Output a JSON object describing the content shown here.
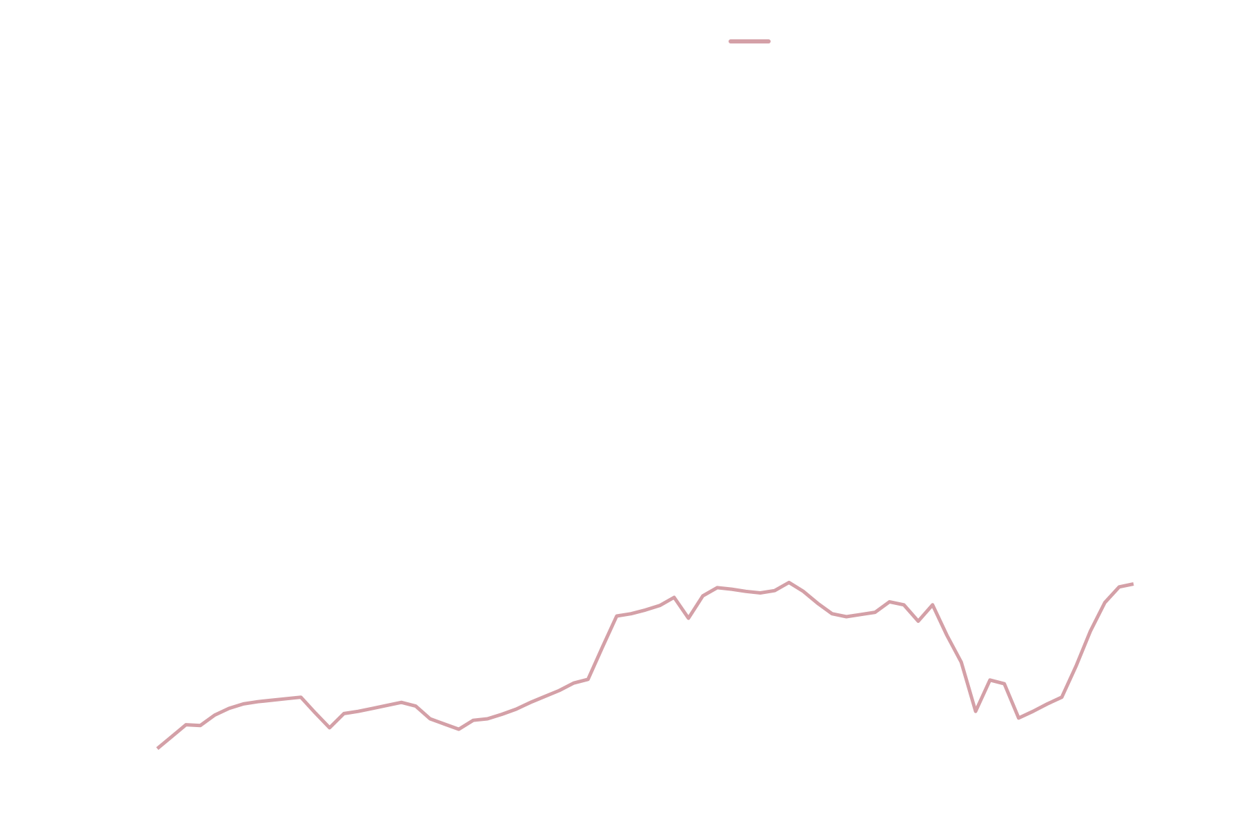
{
  "chart_data": {
    "type": "line",
    "title": "",
    "xlabel": "",
    "ylabel": "",
    "grid": false,
    "legend": {
      "placement": "top-center",
      "entries": [
        {
          "name": ""
        }
      ]
    },
    "axes_visible": false,
    "colors": {
      "series": "#d4a0a7",
      "background": "#ffffff"
    },
    "y_range_estimate": [
      0,
      100
    ],
    "series": [
      {
        "name": "",
        "values": [
          6,
          7.6,
          9.2,
          9.1,
          10.5,
          11.4,
          12,
          12.3,
          12.5,
          12.7,
          12.9,
          10.8,
          8.8,
          10.7,
          11.0,
          11.4,
          11.8,
          12.2,
          11.7,
          10.0,
          9.3,
          8.6,
          9.8,
          10.0,
          10.6,
          11.3,
          12.2,
          13.0,
          13.8,
          14.8,
          15.3,
          19.6,
          23.8,
          24.1,
          24.6,
          25.2,
          26.3,
          23.5,
          26.5,
          27.6,
          27.4,
          27.1,
          26.9,
          27.2,
          28.3,
          27.1,
          25.5,
          24.1,
          23.7,
          24.0,
          24.3,
          25.7,
          25.3,
          23.1,
          25.3,
          21.2,
          17.6,
          11.0,
          15.2,
          14.7,
          10.1,
          11.0,
          12.0,
          12.9,
          17.1,
          21.8,
          25.6,
          27.7,
          28.1
        ]
      }
    ]
  }
}
